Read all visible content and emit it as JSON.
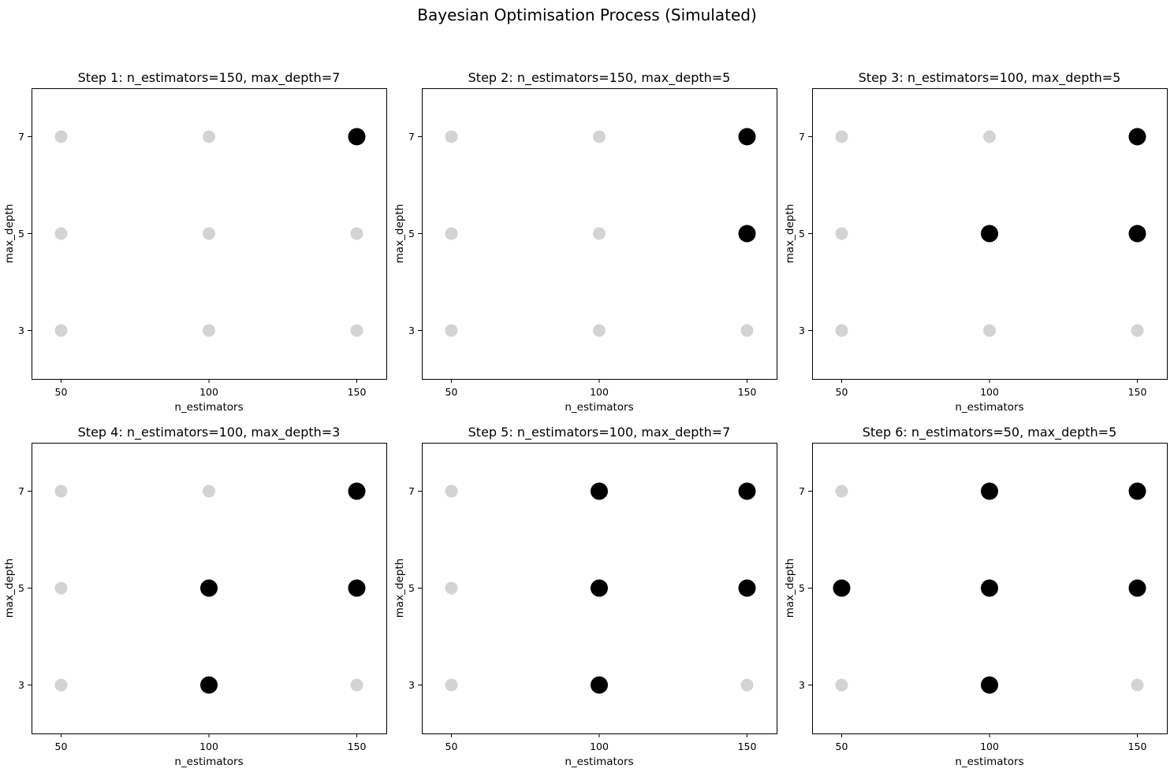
{
  "figure": {
    "title": "Bayesian Optimisation Process (Simulated)"
  },
  "colors": {
    "untested": "#d3d3d3",
    "tested": "#000000"
  },
  "chart_data": [
    {
      "type": "scatter",
      "title": "Step 1: n_estimators=150, max_depth=7",
      "xlabel": "n_estimators",
      "ylabel": "max_depth",
      "xticks": [
        50,
        100,
        150
      ],
      "yticks": [
        3,
        5,
        7
      ],
      "xlim": [
        40,
        160
      ],
      "ylim": [
        2,
        8
      ],
      "grid": false,
      "tested": [
        {
          "x": 150,
          "y": 7
        }
      ]
    },
    {
      "type": "scatter",
      "title": "Step 2: n_estimators=150, max_depth=5",
      "xlabel": "n_estimators",
      "ylabel": "max_depth",
      "xticks": [
        50,
        100,
        150
      ],
      "yticks": [
        3,
        5,
        7
      ],
      "xlim": [
        40,
        160
      ],
      "ylim": [
        2,
        8
      ],
      "grid": false,
      "tested": [
        {
          "x": 150,
          "y": 7
        },
        {
          "x": 150,
          "y": 5
        }
      ]
    },
    {
      "type": "scatter",
      "title": "Step 3: n_estimators=100, max_depth=5",
      "xlabel": "n_estimators",
      "ylabel": "max_depth",
      "xticks": [
        50,
        100,
        150
      ],
      "yticks": [
        3,
        5,
        7
      ],
      "xlim": [
        40,
        160
      ],
      "ylim": [
        2,
        8
      ],
      "grid": false,
      "tested": [
        {
          "x": 150,
          "y": 7
        },
        {
          "x": 150,
          "y": 5
        },
        {
          "x": 100,
          "y": 5
        }
      ]
    },
    {
      "type": "scatter",
      "title": "Step 4: n_estimators=100, max_depth=3",
      "xlabel": "n_estimators",
      "ylabel": "max_depth",
      "xticks": [
        50,
        100,
        150
      ],
      "yticks": [
        3,
        5,
        7
      ],
      "xlim": [
        40,
        160
      ],
      "ylim": [
        2,
        8
      ],
      "grid": false,
      "tested": [
        {
          "x": 150,
          "y": 7
        },
        {
          "x": 150,
          "y": 5
        },
        {
          "x": 100,
          "y": 5
        },
        {
          "x": 100,
          "y": 3
        }
      ]
    },
    {
      "type": "scatter",
      "title": "Step 5: n_estimators=100, max_depth=7",
      "xlabel": "n_estimators",
      "ylabel": "max_depth",
      "xticks": [
        50,
        100,
        150
      ],
      "yticks": [
        3,
        5,
        7
      ],
      "xlim": [
        40,
        160
      ],
      "ylim": [
        2,
        8
      ],
      "grid": false,
      "tested": [
        {
          "x": 150,
          "y": 7
        },
        {
          "x": 150,
          "y": 5
        },
        {
          "x": 100,
          "y": 5
        },
        {
          "x": 100,
          "y": 3
        },
        {
          "x": 100,
          "y": 7
        }
      ]
    },
    {
      "type": "scatter",
      "title": "Step 6: n_estimators=50, max_depth=5",
      "xlabel": "n_estimators",
      "ylabel": "max_depth",
      "xticks": [
        50,
        100,
        150
      ],
      "yticks": [
        3,
        5,
        7
      ],
      "xlim": [
        40,
        160
      ],
      "ylim": [
        2,
        8
      ],
      "grid": false,
      "tested": [
        {
          "x": 150,
          "y": 7
        },
        {
          "x": 150,
          "y": 5
        },
        {
          "x": 100,
          "y": 5
        },
        {
          "x": 100,
          "y": 3
        },
        {
          "x": 100,
          "y": 7
        },
        {
          "x": 50,
          "y": 5
        }
      ]
    }
  ]
}
